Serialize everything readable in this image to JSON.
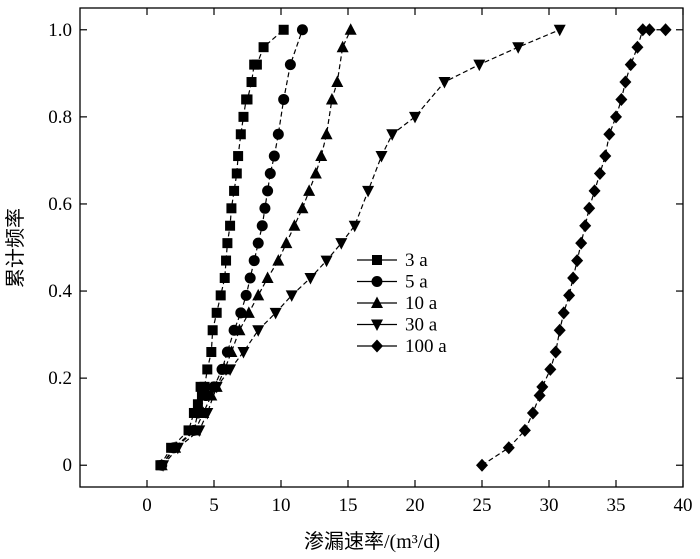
{
  "chart_data": {
    "type": "line",
    "xlabel": "渗漏速率/(m³/d)",
    "ylabel": "累计频率",
    "xlim": [
      -5,
      40
    ],
    "ylim": [
      -0.05,
      1.05
    ],
    "xticks": [
      "0",
      "5",
      "10",
      "15",
      "20",
      "25",
      "30",
      "35",
      "40"
    ],
    "xtick_values": [
      0,
      5,
      10,
      15,
      20,
      25,
      30,
      35,
      40
    ],
    "yticks": [
      "0",
      "0.2",
      "0.4",
      "0.6",
      "0.8",
      "1.0"
    ],
    "ytick_values": [
      0,
      0.2,
      0.4,
      0.6,
      0.8,
      1.0
    ],
    "grid": false,
    "legend_position": "center",
    "series": [
      {
        "name": "3 a",
        "marker": "square",
        "x": [
          1.0,
          1.8,
          3.1,
          3.5,
          3.8,
          4.1,
          4.0,
          4.3,
          4.5,
          4.8,
          4.9,
          5.2,
          5.5,
          5.8,
          5.9,
          6.0,
          6.2,
          6.3,
          6.5,
          6.7,
          6.8,
          7.0,
          7.2,
          7.4,
          7.5,
          7.8,
          8.0,
          8.2,
          8.7,
          10.2
        ],
        "y": [
          0.0,
          0.04,
          0.08,
          0.12,
          0.14,
          0.16,
          0.18,
          0.18,
          0.22,
          0.26,
          0.31,
          0.35,
          0.39,
          0.43,
          0.47,
          0.51,
          0.55,
          0.59,
          0.63,
          0.67,
          0.71,
          0.76,
          0.8,
          0.84,
          0.84,
          0.88,
          0.92,
          0.92,
          0.96,
          1.0
        ]
      },
      {
        "name": "5 a",
        "marker": "circle",
        "x": [
          1.1,
          2.0,
          3.5,
          3.8,
          4.4,
          5.0,
          5.6,
          6.0,
          6.5,
          7.0,
          7.4,
          7.7,
          8.0,
          8.3,
          8.6,
          8.8,
          9.0,
          9.2,
          9.5,
          9.8,
          10.2,
          10.7,
          11.6
        ],
        "y": [
          0.0,
          0.04,
          0.08,
          0.12,
          0.16,
          0.18,
          0.22,
          0.26,
          0.31,
          0.35,
          0.39,
          0.43,
          0.47,
          0.51,
          0.55,
          0.59,
          0.63,
          0.67,
          0.71,
          0.76,
          0.84,
          0.92,
          1.0
        ]
      },
      {
        "name": "10 a",
        "marker": "triangle-up",
        "x": [
          1.1,
          2.1,
          3.6,
          4.2,
          4.8,
          5.2,
          5.8,
          6.3,
          6.9,
          7.6,
          8.3,
          9.0,
          9.8,
          10.4,
          11.0,
          11.6,
          12.1,
          12.6,
          13.0,
          13.4,
          13.8,
          14.2,
          14.6,
          15.2
        ],
        "y": [
          0.0,
          0.04,
          0.08,
          0.12,
          0.16,
          0.18,
          0.22,
          0.26,
          0.31,
          0.35,
          0.39,
          0.43,
          0.47,
          0.51,
          0.55,
          0.59,
          0.63,
          0.67,
          0.71,
          0.76,
          0.84,
          0.88,
          0.96,
          1.0
        ]
      },
      {
        "name": "30 a",
        "marker": "triangle-down",
        "x": [
          1.2,
          2.3,
          3.9,
          4.5,
          5.2,
          6.2,
          7.2,
          8.3,
          9.6,
          10.8,
          12.2,
          13.4,
          14.5,
          15.5,
          16.5,
          17.5,
          18.3,
          20.0,
          22.2,
          24.8,
          27.7,
          30.8
        ],
        "y": [
          0.0,
          0.04,
          0.08,
          0.12,
          0.18,
          0.22,
          0.26,
          0.31,
          0.35,
          0.39,
          0.43,
          0.47,
          0.51,
          0.55,
          0.63,
          0.71,
          0.76,
          0.8,
          0.88,
          0.92,
          0.96,
          1.0
        ]
      },
      {
        "name": "100 a",
        "marker": "diamond",
        "x": [
          25.0,
          27.0,
          28.2,
          28.8,
          29.3,
          29.5,
          30.1,
          30.5,
          30.8,
          31.1,
          31.5,
          31.8,
          32.1,
          32.4,
          32.7,
          33.0,
          33.4,
          33.8,
          34.2,
          34.5,
          35.0,
          35.4,
          35.7,
          36.1,
          36.6,
          37.0,
          37.5,
          38.7
        ],
        "y": [
          0.0,
          0.04,
          0.08,
          0.12,
          0.16,
          0.18,
          0.22,
          0.26,
          0.31,
          0.35,
          0.39,
          0.43,
          0.47,
          0.51,
          0.55,
          0.59,
          0.63,
          0.67,
          0.71,
          0.76,
          0.8,
          0.84,
          0.88,
          0.92,
          0.96,
          1.0,
          1.0,
          1.0
        ]
      }
    ]
  }
}
